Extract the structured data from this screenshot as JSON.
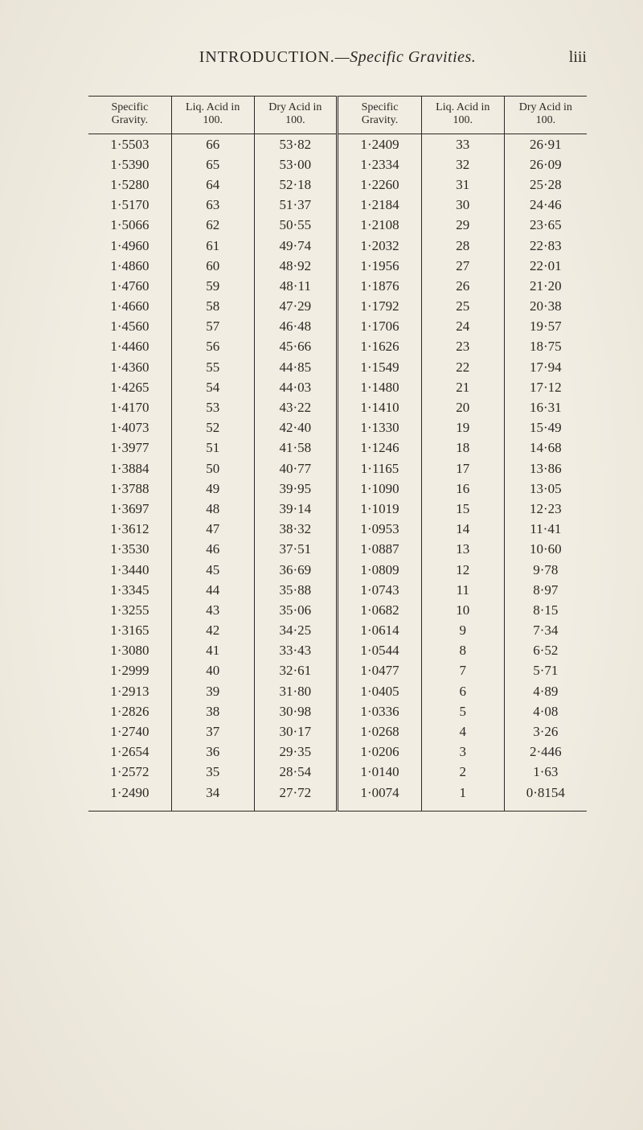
{
  "page": {
    "running_title_sc": "INTRODUCTION.",
    "running_title_ital": "—Specific Gravities.",
    "folio": "liii",
    "background_color": "#f1ede2",
    "text_color": "#2b2926",
    "rule_color": "#2b2926",
    "font_family": "Times New Roman / Georgia serif",
    "body_fontsize_pt": 13,
    "header_fontsize_pt": 10,
    "title_fontsize_pt": 15
  },
  "table": {
    "type": "table",
    "columns_left": [
      "Specific Gravity.",
      "Liq. Acid in 100.",
      "Dry Acid in 100."
    ],
    "columns_right": [
      "Specific Gravity.",
      "Liq. Acid in 100.",
      "Dry Acid in 100."
    ],
    "column_align": "center",
    "border_style": "single-rule top/bottom, double-rule center gutter",
    "rows": [
      [
        "1·5503",
        "66",
        "53·82",
        "1·2409",
        "33",
        "26·91"
      ],
      [
        "1·5390",
        "65",
        "53·00",
        "1·2334",
        "32",
        "26·09"
      ],
      [
        "1·5280",
        "64",
        "52·18",
        "1·2260",
        "31",
        "25·28"
      ],
      [
        "1·5170",
        "63",
        "51·37",
        "1·2184",
        "30",
        "24·46"
      ],
      [
        "1·5066",
        "62",
        "50·55",
        "1·2108",
        "29",
        "23·65"
      ],
      [
        "1·4960",
        "61",
        "49·74",
        "1·2032",
        "28",
        "22·83"
      ],
      [
        "1·4860",
        "60",
        "48·92",
        "1·1956",
        "27",
        "22·01"
      ],
      [
        "1·4760",
        "59",
        "48·11",
        "1·1876",
        "26",
        "21·20"
      ],
      [
        "1·4660",
        "58",
        "47·29",
        "1·1792",
        "25",
        "20·38"
      ],
      [
        "1·4560",
        "57",
        "46·48",
        "1·1706",
        "24",
        "19·57"
      ],
      [
        "1·4460",
        "56",
        "45·66",
        "1·1626",
        "23",
        "18·75"
      ],
      [
        "1·4360",
        "55",
        "44·85",
        "1·1549",
        "22",
        "17·94"
      ],
      [
        "1·4265",
        "54",
        "44·03",
        "1·1480",
        "21",
        "17·12"
      ],
      [
        "1·4170",
        "53",
        "43·22",
        "1·1410",
        "20",
        "16·31"
      ],
      [
        "1·4073",
        "52",
        "42·40",
        "1·1330",
        "19",
        "15·49"
      ],
      [
        "1·3977",
        "51",
        "41·58",
        "1·1246",
        "18",
        "14·68"
      ],
      [
        "1·3884",
        "50",
        "40·77",
        "1·1165",
        "17",
        "13·86"
      ],
      [
        "1·3788",
        "49",
        "39·95",
        "1·1090",
        "16",
        "13·05"
      ],
      [
        "1·3697",
        "48",
        "39·14",
        "1·1019",
        "15",
        "12·23"
      ],
      [
        "1·3612",
        "47",
        "38·32",
        "1·0953",
        "14",
        "11·41"
      ],
      [
        "1·3530",
        "46",
        "37·51",
        "1·0887",
        "13",
        "10·60"
      ],
      [
        "1·3440",
        "45",
        "36·69",
        "1·0809",
        "12",
        "9·78"
      ],
      [
        "1·3345",
        "44",
        "35·88",
        "1·0743",
        "11",
        "8·97"
      ],
      [
        "1·3255",
        "43",
        "35·06",
        "1·0682",
        "10",
        "8·15"
      ],
      [
        "1·3165",
        "42",
        "34·25",
        "1·0614",
        "9",
        "7·34"
      ],
      [
        "1·3080",
        "41",
        "33·43",
        "1·0544",
        "8",
        "6·52"
      ],
      [
        "1·2999",
        "40",
        "32·61",
        "1·0477",
        "7",
        "5·71"
      ],
      [
        "1·2913",
        "39",
        "31·80",
        "1·0405",
        "6",
        "4·89"
      ],
      [
        "1·2826",
        "38",
        "30·98",
        "1·0336",
        "5",
        "4·08"
      ],
      [
        "1·2740",
        "37",
        "30·17",
        "1·0268",
        "4",
        "3·26"
      ],
      [
        "1·2654",
        "36",
        "29·35",
        "1·0206",
        "3",
        "2·446"
      ],
      [
        "1·2572",
        "35",
        "28·54",
        "1·0140",
        "2",
        "1·63"
      ],
      [
        "1·2490",
        "34",
        "27·72",
        "1·0074",
        "1",
        "0·8154"
      ]
    ]
  }
}
